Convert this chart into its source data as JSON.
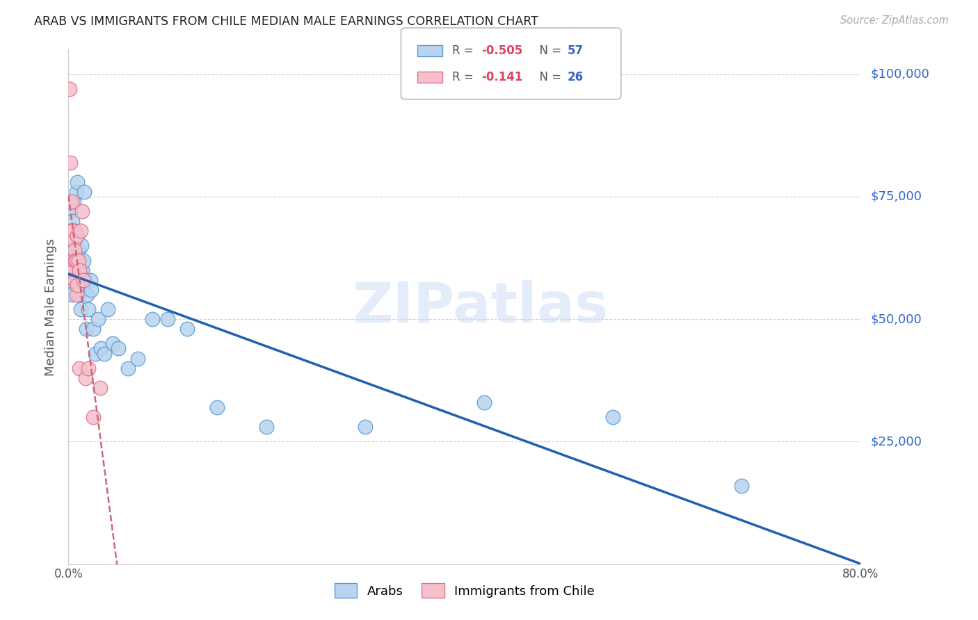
{
  "title": "ARAB VS IMMIGRANTS FROM CHILE MEDIAN MALE EARNINGS CORRELATION CHART",
  "source": "Source: ZipAtlas.com",
  "ylabel": "Median Male Earnings",
  "xlim": [
    0.0,
    0.8
  ],
  "ylim": [
    0,
    105000
  ],
  "yticks": [
    0,
    25000,
    50000,
    75000,
    100000
  ],
  "ytick_labels_right": [
    "",
    "$25,000",
    "$50,000",
    "$75,000",
    "$100,000"
  ],
  "xtick_positions": [
    0.0,
    0.1,
    0.2,
    0.3,
    0.4,
    0.5,
    0.6,
    0.7,
    0.8
  ],
  "xtick_labels": [
    "0.0%",
    "",
    "",
    "",
    "",
    "",
    "",
    "",
    "80.0%"
  ],
  "background_color": "#ffffff",
  "grid_color": "#d0d0d0",
  "arab_color": "#b8d4ee",
  "arab_edge_color": "#5b9bd5",
  "chile_color": "#f5c0cb",
  "chile_edge_color": "#e07090",
  "trendline_arab_color": "#2060b0",
  "trendline_chile_color": "#cc6677",
  "legend_r_arab": "-0.505",
  "legend_n_arab": "57",
  "legend_r_chile": "-0.141",
  "legend_n_chile": "26",
  "watermark": "ZIPatlas",
  "arab_x": [
    0.001,
    0.001,
    0.002,
    0.002,
    0.003,
    0.003,
    0.004,
    0.004,
    0.005,
    0.005,
    0.005,
    0.006,
    0.006,
    0.007,
    0.007,
    0.007,
    0.008,
    0.008,
    0.009,
    0.009,
    0.009,
    0.01,
    0.01,
    0.011,
    0.011,
    0.012,
    0.012,
    0.013,
    0.013,
    0.014,
    0.015,
    0.016,
    0.017,
    0.018,
    0.019,
    0.02,
    0.022,
    0.023,
    0.025,
    0.027,
    0.03,
    0.033,
    0.036,
    0.04,
    0.045,
    0.05,
    0.06,
    0.07,
    0.085,
    0.1,
    0.12,
    0.15,
    0.2,
    0.3,
    0.42,
    0.55,
    0.68
  ],
  "arab_y": [
    63000,
    58000,
    68000,
    72000,
    65000,
    60000,
    70000,
    55000,
    68000,
    74000,
    62000,
    66000,
    60000,
    64000,
    68000,
    58000,
    62000,
    76000,
    78000,
    63000,
    58000,
    64000,
    55000,
    60000,
    57000,
    58000,
    52000,
    65000,
    56000,
    60000,
    62000,
    76000,
    58000,
    48000,
    55000,
    52000,
    58000,
    56000,
    48000,
    43000,
    50000,
    44000,
    43000,
    52000,
    45000,
    44000,
    40000,
    42000,
    50000,
    50000,
    48000,
    32000,
    28000,
    28000,
    33000,
    30000,
    16000
  ],
  "chile_x": [
    0.001,
    0.002,
    0.002,
    0.003,
    0.003,
    0.004,
    0.004,
    0.005,
    0.005,
    0.006,
    0.006,
    0.007,
    0.008,
    0.008,
    0.009,
    0.009,
    0.01,
    0.011,
    0.011,
    0.012,
    0.014,
    0.015,
    0.017,
    0.02,
    0.025,
    0.032
  ],
  "chile_y": [
    97000,
    82000,
    68000,
    74000,
    68000,
    68000,
    62000,
    66000,
    60000,
    64000,
    58000,
    62000,
    55000,
    62000,
    67000,
    57000,
    62000,
    60000,
    40000,
    68000,
    72000,
    58000,
    38000,
    40000,
    30000,
    36000
  ]
}
